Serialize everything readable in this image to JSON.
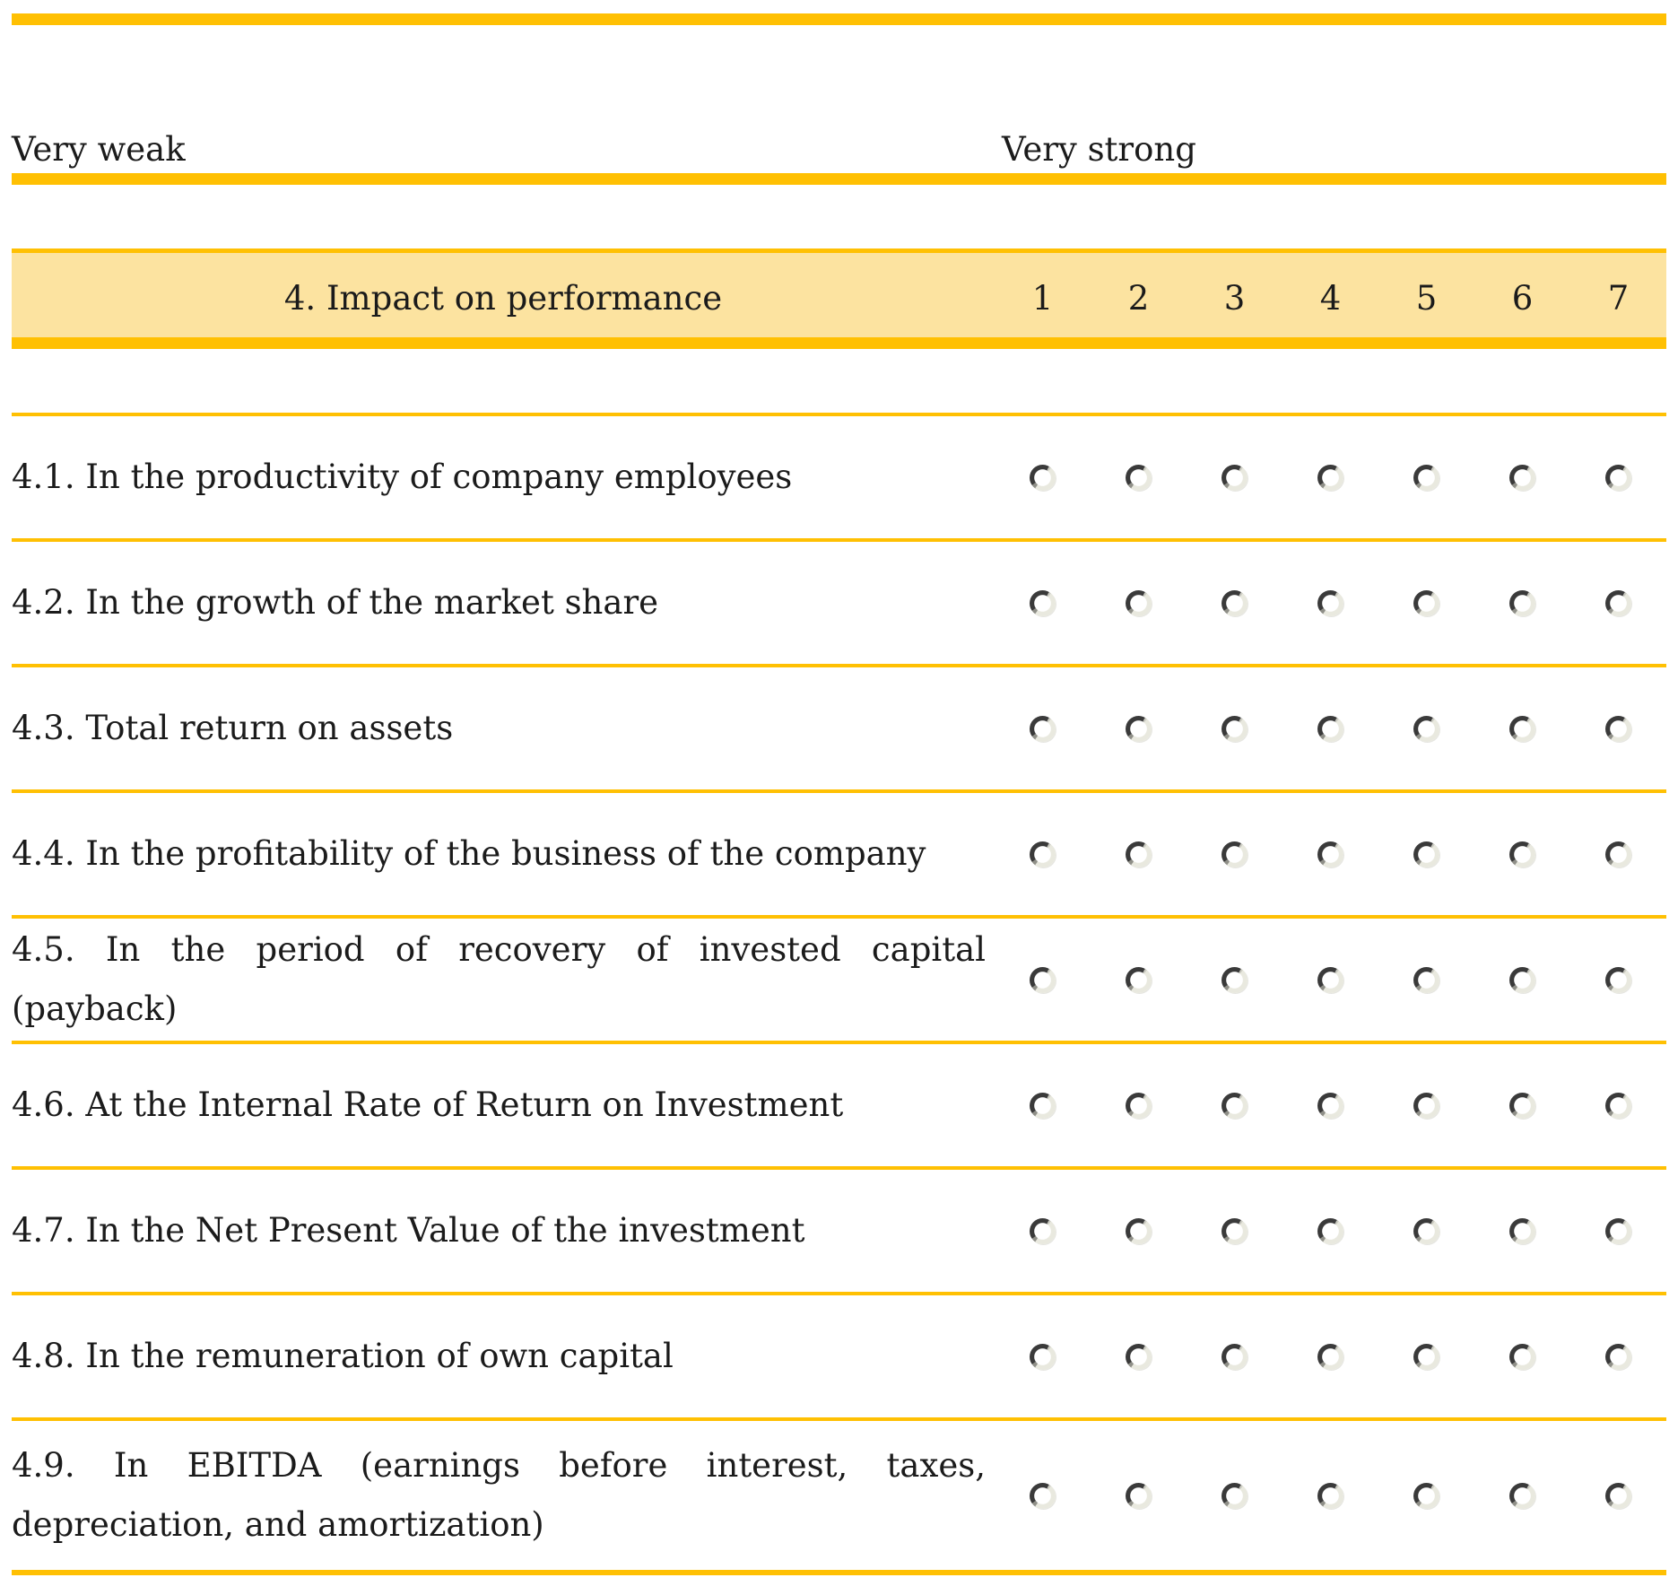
{
  "colors": {
    "accent_gold": "#FFC003",
    "header_fill": "#FCE3A0",
    "text": "#1B1B1B",
    "radio_dark": "#3A3A3A",
    "radio_light": "#E9E9DF"
  },
  "scale_labels": {
    "left": "Very weak",
    "right": "Very strong"
  },
  "table": {
    "header": {
      "title": "4. Impact on performance",
      "columns": [
        "1",
        "2",
        "3",
        "4",
        "5",
        "6",
        "7"
      ]
    },
    "rows": [
      {
        "label": "4.1. In the productivity of company employees"
      },
      {
        "label": "4.2. In the growth of the market share"
      },
      {
        "label": "4.3. Total return on assets"
      },
      {
        "label": "4.4. In the profitability of the business of the company"
      },
      {
        "label": "4.5. In the period of recovery of invested capital (payback)"
      },
      {
        "label": "4.6. At the Internal Rate of Return on Investment"
      },
      {
        "label": "4.7. In the Net Present Value of the investment"
      },
      {
        "label": "4.8. In the remuneration of own capital"
      },
      {
        "label": "4.9. In EBITDA (earnings before interest, taxes, depreciation, and amortization)"
      }
    ]
  },
  "radios": {
    "options_per_row": 7,
    "all_unselected": true
  }
}
